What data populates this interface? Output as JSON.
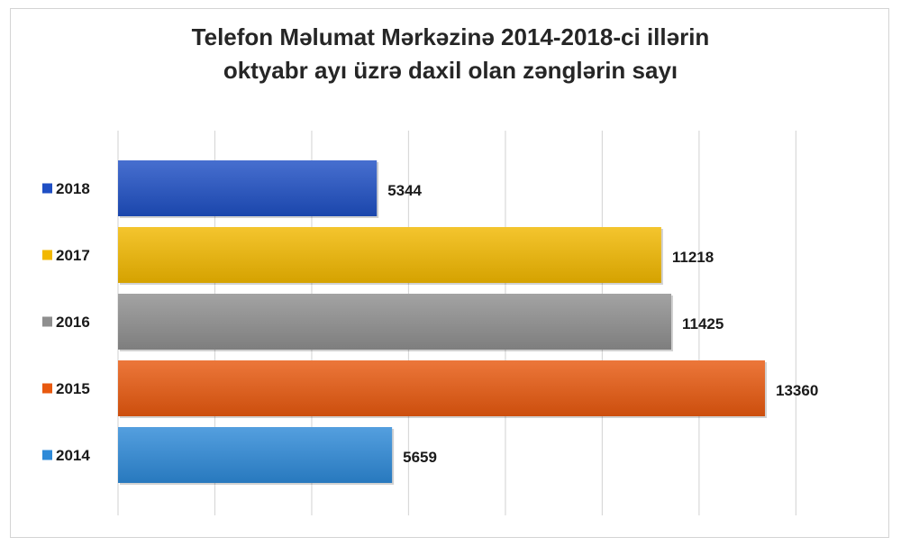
{
  "chart_data": {
    "type": "bar",
    "orientation": "horizontal",
    "title_line1": "Telefon Məlumat Mərkəzinə 2014-2018-ci illərin",
    "title_line2": "oktyabr ayı üzrə daxil olan zənglərin sayı",
    "categories": [
      "2018",
      "2017",
      "2016",
      "2015",
      "2014"
    ],
    "values": [
      5344,
      11218,
      11425,
      13360,
      5659
    ],
    "colors": [
      "#1f4fc4",
      "#f2b800",
      "#8f8f8f",
      "#e8590f",
      "#2e8ad8"
    ],
    "xlim": [
      0,
      14000
    ],
    "grid": true,
    "legend": "left"
  }
}
